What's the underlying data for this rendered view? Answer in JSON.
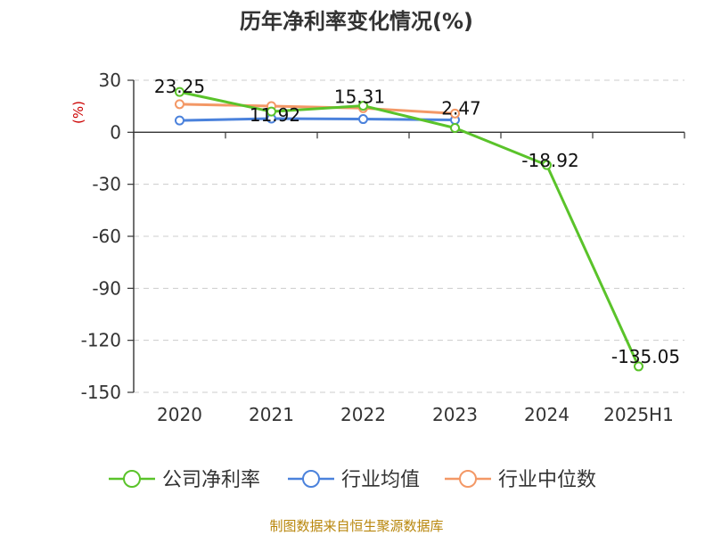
{
  "chart_data": {
    "type": "line",
    "title": "历年净利率变化情况(%)",
    "ylabel": "(%)",
    "xlabel": "",
    "categories": [
      "2020",
      "2021",
      "2022",
      "2023",
      "2024",
      "2025H1"
    ],
    "ylim": [
      -150,
      30
    ],
    "yticks": [
      "30",
      "0",
      "-30",
      "-60",
      "-90",
      "-120",
      "-150"
    ],
    "ytick_values": [
      30,
      0,
      -30,
      -60,
      -90,
      -120,
      -150
    ],
    "grid": "horizontal dashed",
    "legend_position": "bottom",
    "series": [
      {
        "name": "公司净利率",
        "color": "#5ac32a",
        "values": [
          23.25,
          11.92,
          15.31,
          2.47,
          -18.92,
          -135.05
        ],
        "labels": [
          "23.25",
          "11.92",
          "15.31",
          "2.47",
          "-18.92",
          "-135.05"
        ]
      },
      {
        "name": "行业均值",
        "color": "#4b82dc",
        "values": [
          6.8,
          7.9,
          7.6,
          7.1,
          null,
          null
        ]
      },
      {
        "name": "行业中位数",
        "color": "#f39866",
        "values": [
          16.2,
          15.1,
          13.9,
          10.8,
          null,
          null
        ]
      }
    ],
    "source": "制图数据来自恒生聚源数据库"
  }
}
